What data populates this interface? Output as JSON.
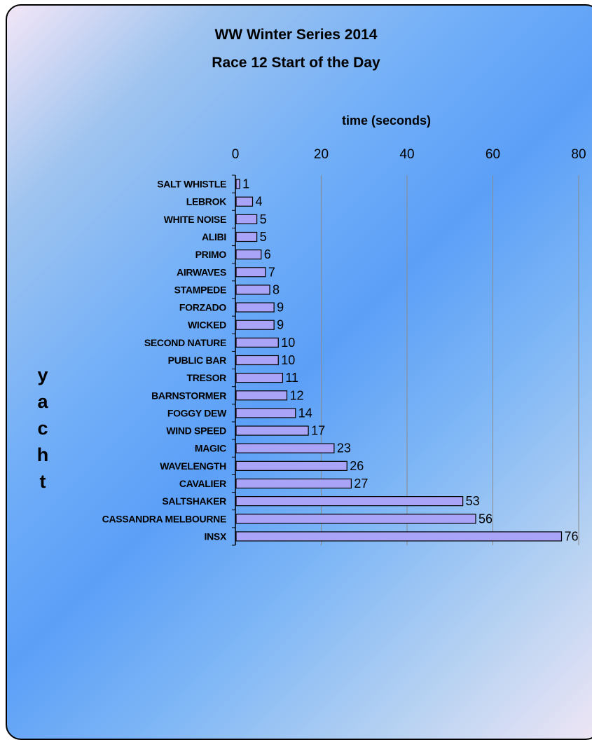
{
  "chart_data": {
    "type": "bar",
    "orientation": "horizontal",
    "title": [
      "WW Winter Series 2014",
      "Race 12 Start of the Day"
    ],
    "xlabel": "time (seconds)",
    "ylabel": "yacht",
    "xlim": [
      0,
      80
    ],
    "xticks": [
      0,
      20,
      40,
      60,
      80
    ],
    "x_axis_position": "top",
    "grid": "vertical",
    "bar_color": "#a9a4f7",
    "categories": [
      "SALT WHISTLE",
      "LEBROK",
      "WHITE NOISE",
      "ALIBI",
      "PRIMO",
      "AIRWAVES",
      "STAMPEDE",
      "FORZADO",
      "WICKED",
      "SECOND NATURE",
      "PUBLIC BAR",
      "TRESOR",
      "BARNSTORMER",
      "FOGGY DEW",
      "WIND SPEED",
      "MAGIC",
      "WAVELENGTH",
      "CAVALIER",
      "SALTSHAKER",
      "CASSANDRA MELBOURNE",
      "INSX"
    ],
    "values": [
      1,
      4,
      5,
      5,
      6,
      7,
      8,
      9,
      9,
      10,
      10,
      11,
      12,
      14,
      17,
      23,
      26,
      27,
      53,
      56,
      76
    ]
  }
}
